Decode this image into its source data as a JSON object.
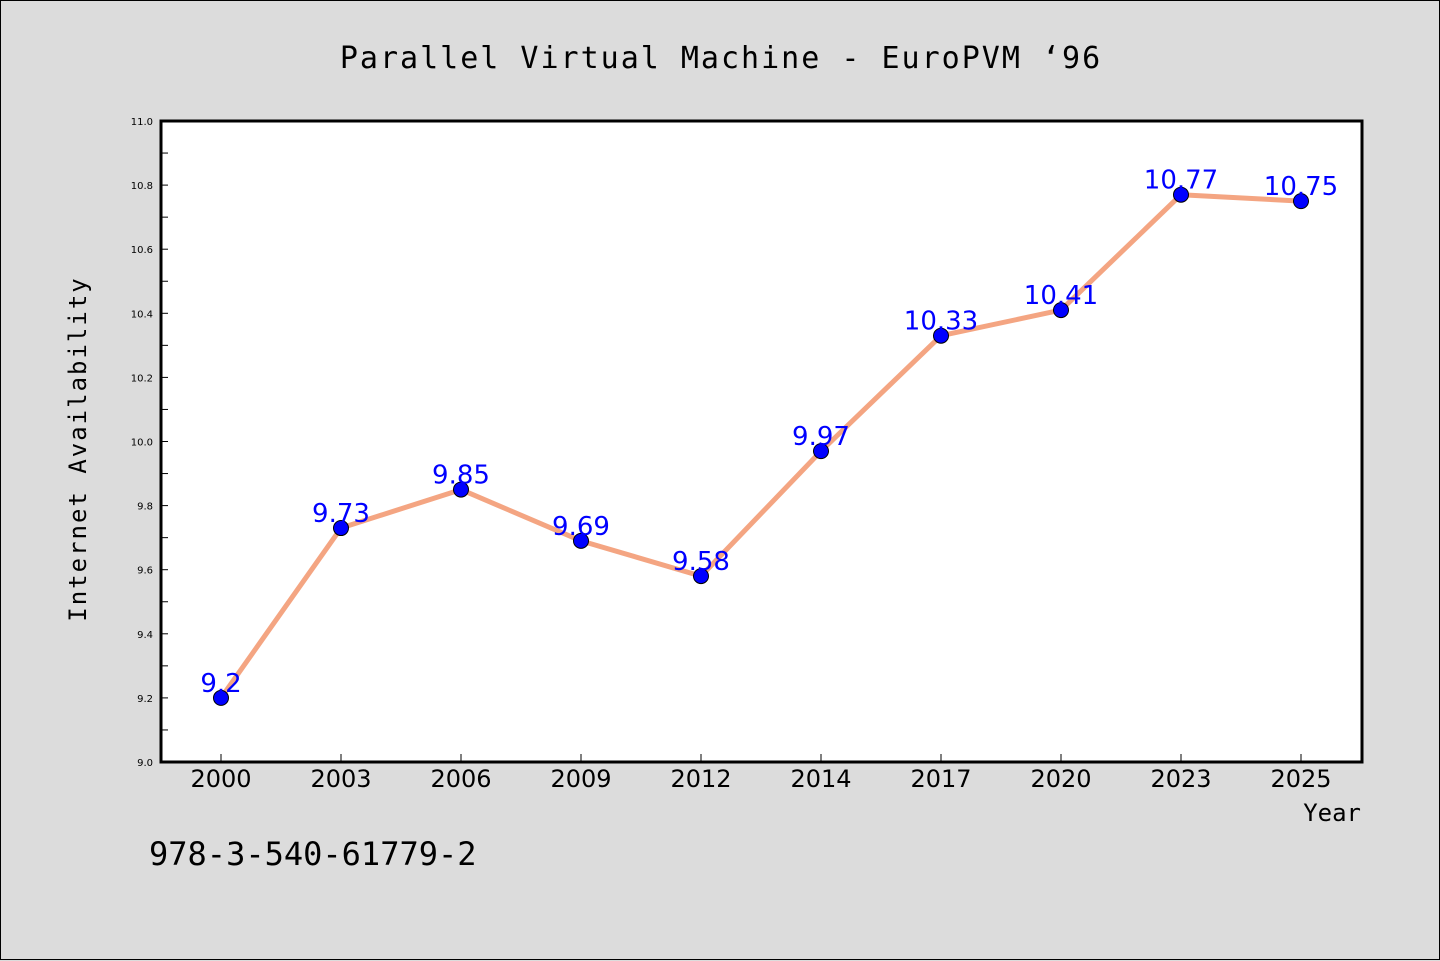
{
  "chart_data": {
    "type": "line",
    "title": "Parallel Virtual Machine - EuroPVM ‘96",
    "xlabel": "Year",
    "ylabel": "Internet Availability",
    "categories": [
      "2000",
      "2003",
      "2006",
      "2009",
      "2012",
      "2014",
      "2017",
      "2020",
      "2023",
      "2025"
    ],
    "values": [
      9.2,
      9.73,
      9.85,
      9.69,
      9.58,
      9.97,
      10.33,
      10.41,
      10.77,
      10.75
    ],
    "data_labels": [
      "9.2",
      "9.73",
      "9.85",
      "9.69",
      "9.58",
      "9.97",
      "10.33",
      "10.41",
      "10.77",
      "10.75"
    ],
    "ylim": [
      9.0,
      11.0
    ],
    "yticks": [
      "9.0",
      "9.2",
      "9.4",
      "9.6",
      "9.8",
      "10.0",
      "10.2",
      "10.4",
      "10.6",
      "10.8",
      "11.0"
    ],
    "grid": false,
    "legend": "none",
    "colors": {
      "line": "#f4a582",
      "marker": "#0000ff",
      "label": "#0000ff",
      "background": "#dcdcdc",
      "plot_background": "#ffffff"
    }
  },
  "footnote": "978-3-540-61779-2"
}
